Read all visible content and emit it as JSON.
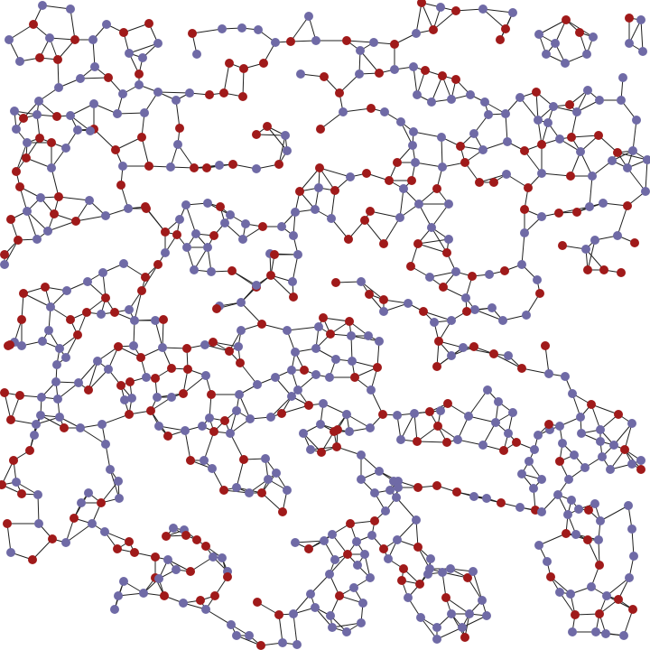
{
  "graph": {
    "node_colors": {
      "a": "#6f6aa6",
      "b": "#a01a1a"
    },
    "edge_color": "#1f1f1f",
    "background": "#ffffff"
  }
}
